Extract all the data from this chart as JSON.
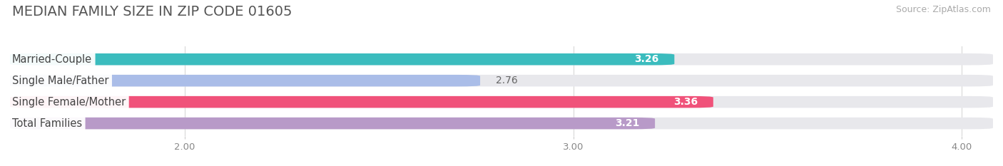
{
  "title": "MEDIAN FAMILY SIZE IN ZIP CODE 01605",
  "source": "Source: ZipAtlas.com",
  "categories": [
    "Married-Couple",
    "Single Male/Father",
    "Single Female/Mother",
    "Total Families"
  ],
  "values": [
    3.26,
    2.76,
    3.36,
    3.21
  ],
  "bar_colors": [
    "#3bbcbe",
    "#aabde8",
    "#f0527a",
    "#b89ac8"
  ],
  "value_in_bar": [
    true,
    false,
    true,
    true
  ],
  "value_colors_inside": [
    "#ffffff",
    "#666666",
    "#ffffff",
    "#ffffff"
  ],
  "xlim_min": 1.55,
  "xlim_max": 4.08,
  "xticks": [
    2.0,
    3.0,
    4.0
  ],
  "xtick_labels": [
    "2.00",
    "3.00",
    "4.00"
  ],
  "bar_height": 0.55,
  "background_color": "#ffffff",
  "bar_bg_color": "#e8e8ec",
  "title_fontsize": 14,
  "source_fontsize": 9,
  "label_fontsize": 10.5,
  "value_fontsize": 10
}
